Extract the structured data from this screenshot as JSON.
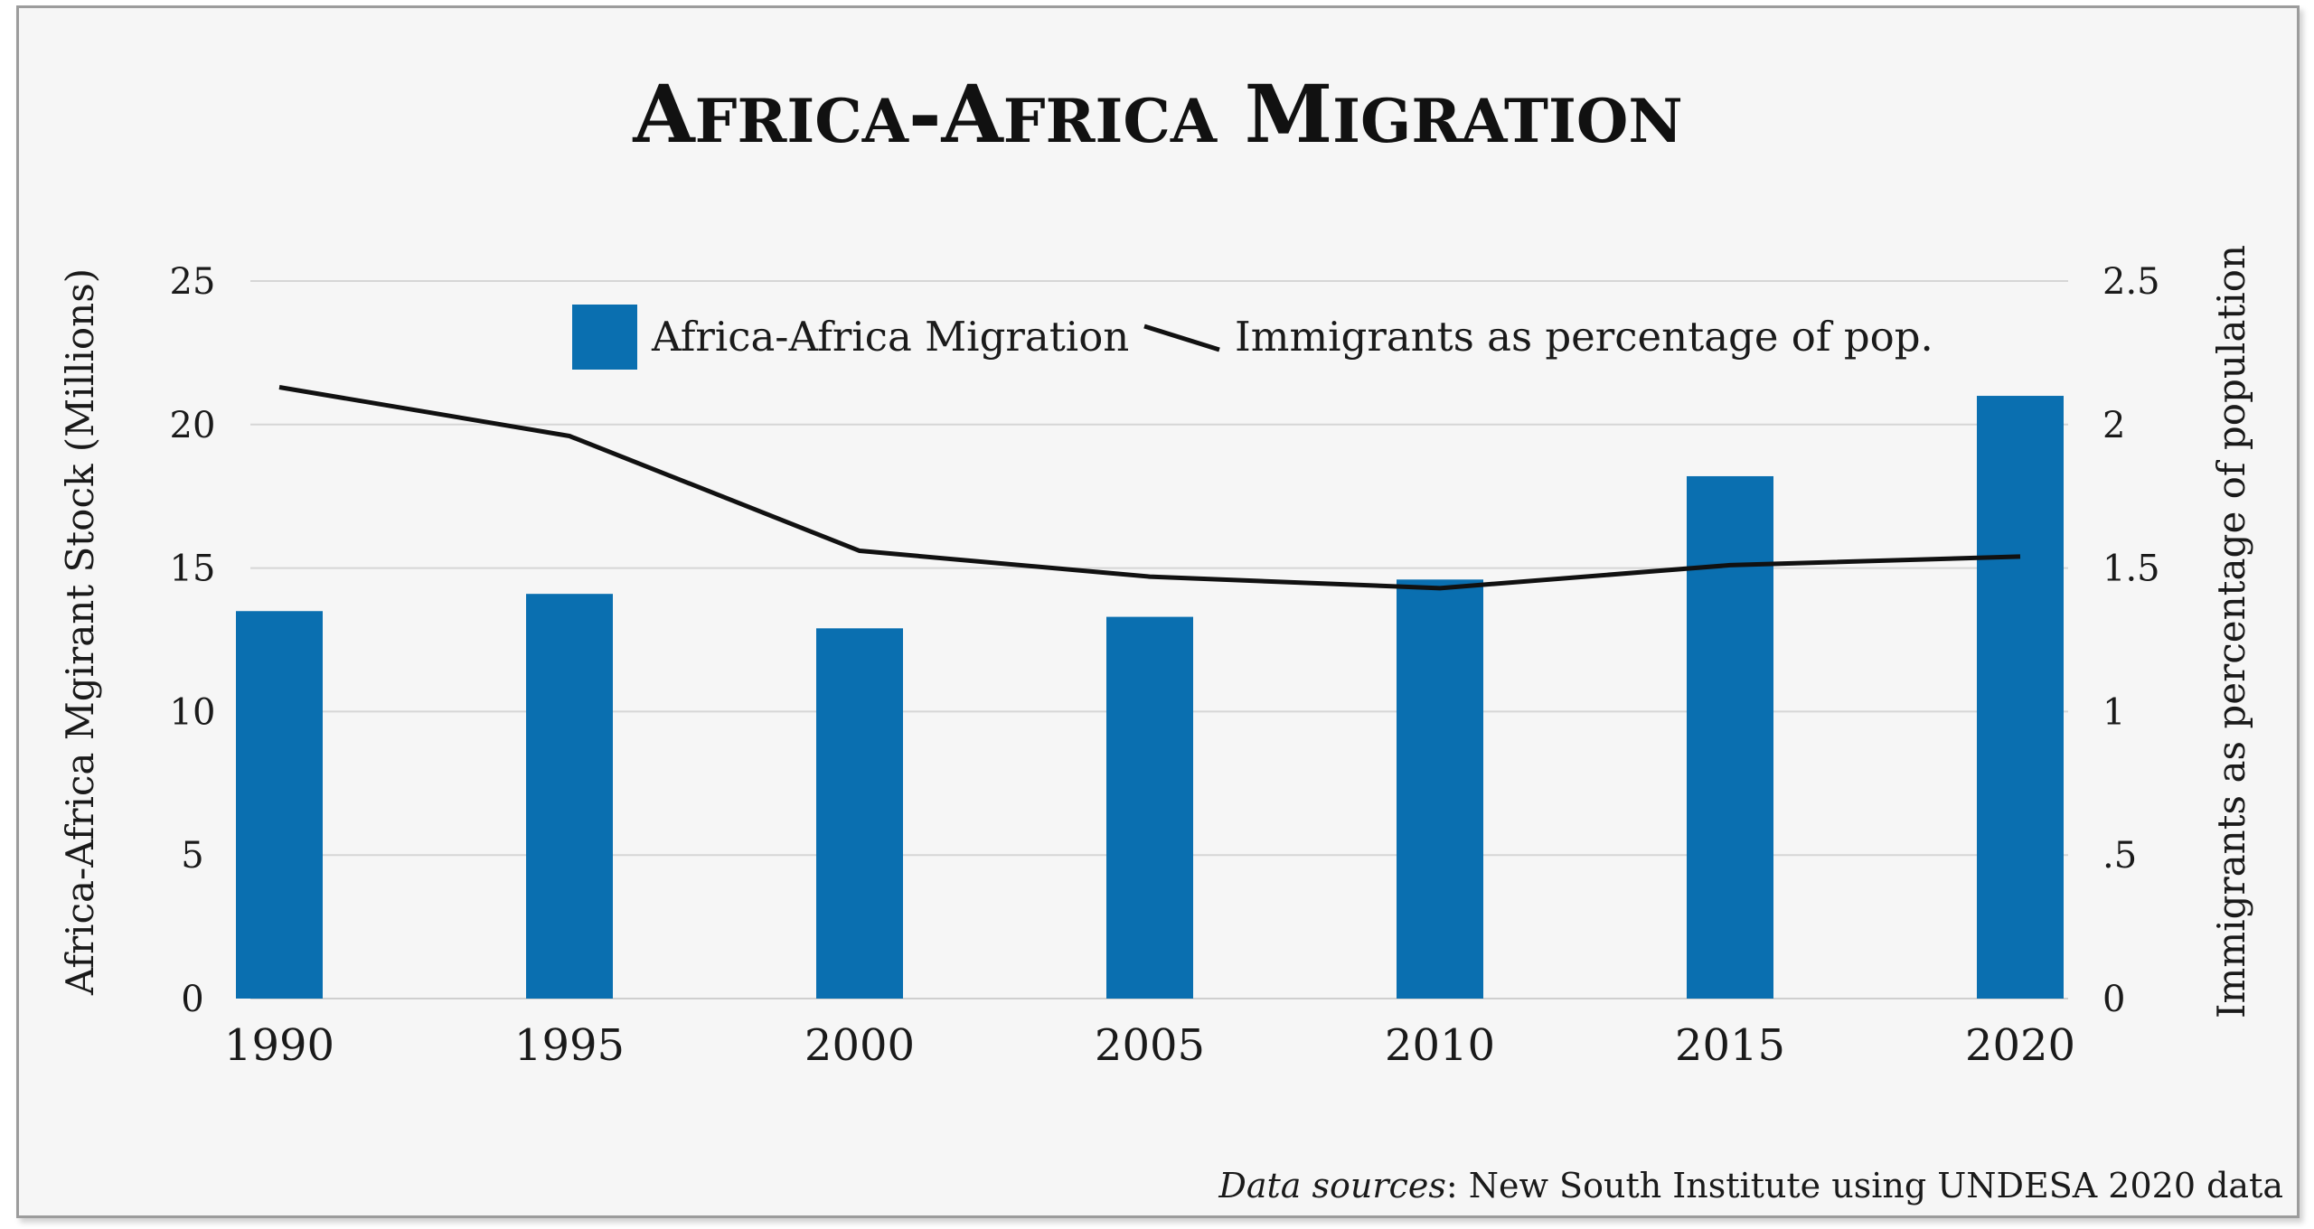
{
  "chart_data": {
    "type": "bar",
    "title": "Africa-Africa Migration",
    "categories": [
      "1990",
      "1995",
      "2000",
      "2005",
      "2010",
      "2015",
      "2020"
    ],
    "series": [
      {
        "name": "Africa-Africa Migration",
        "kind": "bar",
        "axis": "left",
        "color": "#0a6fb0",
        "values": [
          13.5,
          14.1,
          12.9,
          13.3,
          14.6,
          18.2,
          21.0
        ]
      },
      {
        "name": "Immigrants as percentage of pop.",
        "kind": "line",
        "axis": "right",
        "color": "#111111",
        "values": [
          2.13,
          1.96,
          1.56,
          1.47,
          1.43,
          1.51,
          1.54
        ]
      }
    ],
    "ylabel": "Africa-Africa Mgirant Stock (Millions)",
    "ylim": [
      0,
      25
    ],
    "yticks": [
      "0",
      "5",
      "10",
      "15",
      "20",
      "25"
    ],
    "y2label": "Immigrants as percentage of population",
    "y2lim": [
      0,
      2.5
    ],
    "y2ticks": [
      "0",
      ".5",
      "1",
      "1.5",
      "2",
      "2.5"
    ],
    "grid": true,
    "legend_position": "top-center",
    "source_label": "Data sources",
    "source_text": ": New South Institute using UNDESA 2020 data"
  }
}
